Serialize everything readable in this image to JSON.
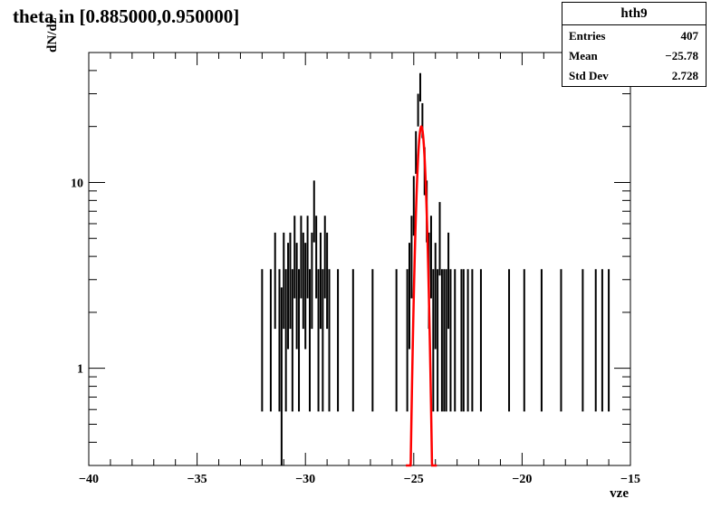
{
  "chart_data": {
    "type": "histogram",
    "title": "theta in [0.885000,0.950000]",
    "xlabel": "vze",
    "ylabel": "dN/dz",
    "xlim": [
      -40,
      -15
    ],
    "ylim": [
      0.3,
      50
    ],
    "yscale": "log",
    "x_ticks": [
      -40,
      -35,
      -30,
      -25,
      -20,
      -15
    ],
    "y_ticks": [
      1,
      10
    ],
    "histogram": {
      "name": "hth9",
      "color": "#000000",
      "bins": [
        [
          -32.0,
          2
        ],
        [
          -31.6,
          2
        ],
        [
          -31.4,
          3.5
        ],
        [
          -31.2,
          2
        ],
        [
          -31.1,
          1.5
        ],
        [
          -31.0,
          3.5
        ],
        [
          -30.9,
          2
        ],
        [
          -30.8,
          3
        ],
        [
          -30.7,
          3.5
        ],
        [
          -30.6,
          2
        ],
        [
          -30.5,
          4.5
        ],
        [
          -30.4,
          3
        ],
        [
          -30.3,
          2
        ],
        [
          -30.2,
          4.5
        ],
        [
          -30.1,
          3.5
        ],
        [
          -30.0,
          3
        ],
        [
          -29.9,
          4.5
        ],
        [
          -29.8,
          2
        ],
        [
          -29.7,
          3.5
        ],
        [
          -29.6,
          7.5
        ],
        [
          -29.5,
          4.5
        ],
        [
          -29.4,
          2
        ],
        [
          -29.3,
          3.5
        ],
        [
          -29.2,
          2
        ],
        [
          -29.1,
          4.5
        ],
        [
          -29.0,
          3.5
        ],
        [
          -28.9,
          2
        ],
        [
          -28.5,
          2
        ],
        [
          -27.8,
          2
        ],
        [
          -26.9,
          2
        ],
        [
          -25.8,
          2
        ],
        [
          -25.3,
          2
        ],
        [
          -25.2,
          3
        ],
        [
          -25.1,
          4.5
        ],
        [
          -25.0,
          8
        ],
        [
          -24.9,
          15
        ],
        [
          -24.8,
          25
        ],
        [
          -24.7,
          33
        ],
        [
          -24.6,
          22
        ],
        [
          -24.5,
          12
        ],
        [
          -24.4,
          7.5
        ],
        [
          -24.3,
          3.5
        ],
        [
          -24.2,
          4.5
        ],
        [
          -24.1,
          2
        ],
        [
          -24.0,
          3
        ],
        [
          -23.9,
          2
        ],
        [
          -23.8,
          5.5
        ],
        [
          -23.7,
          2
        ],
        [
          -23.6,
          2
        ],
        [
          -23.5,
          2
        ],
        [
          -23.4,
          3.5
        ],
        [
          -23.3,
          2
        ],
        [
          -23.1,
          2
        ],
        [
          -22.8,
          2
        ],
        [
          -22.7,
          2
        ],
        [
          -22.5,
          2
        ],
        [
          -22.3,
          2
        ],
        [
          -21.9,
          2
        ],
        [
          -20.6,
          2
        ],
        [
          -19.9,
          2
        ],
        [
          -19.1,
          2
        ],
        [
          -18.2,
          2
        ],
        [
          -17.2,
          2
        ],
        [
          -16.6,
          2
        ],
        [
          -16.3,
          2
        ],
        [
          -16.0,
          2
        ]
      ]
    },
    "fit": {
      "color": "#ff0000",
      "amplitude": 20,
      "mean": -24.65,
      "sigma": 0.17
    }
  },
  "stats_box": {
    "name": "hth9",
    "rows": [
      {
        "label": "Entries",
        "value": "407"
      },
      {
        "label": "Mean",
        "value": "−25.78"
      },
      {
        "label": "Std Dev",
        "value": "2.728"
      }
    ]
  }
}
